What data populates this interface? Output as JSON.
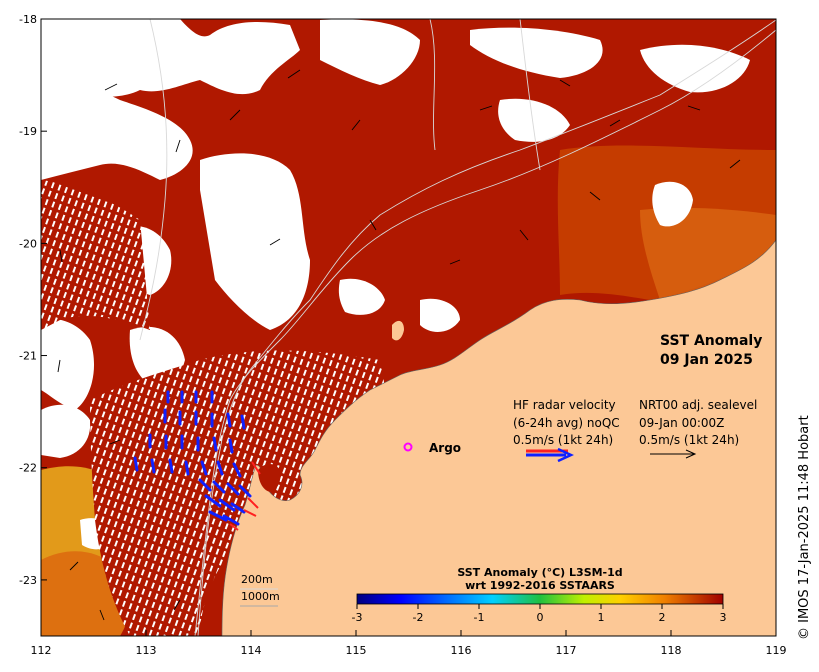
{
  "map": {
    "title_line1": "SST Anomaly",
    "title_line2": "09 Jan 2025",
    "x_ticks": [
      "112",
      "113",
      "114",
      "115",
      "116",
      "117",
      "118",
      "119"
    ],
    "y_ticks": [
      "-18",
      "-19",
      "-20",
      "-21",
      "-22",
      "-23"
    ],
    "lon_range": [
      112,
      119
    ],
    "lat_range": [
      -23.5,
      -18
    ],
    "credit": "© IMOS 17-Jan-2025 11:48 Hobart"
  },
  "legend": {
    "hf_line1": "HF radar velocity",
    "hf_line2": "(6-24h avg) noQC",
    "hf_line3": "0.5m/s (1kt 24h)",
    "nrt_line1": "NRT00 adj. sealevel",
    "nrt_line2": "09-Jan 00:00Z",
    "nrt_line3": "0.5m/s (1kt 24h)",
    "argo_marker": "o",
    "argo_label": "Argo"
  },
  "depth": {
    "contour1": "200m",
    "contour2": "1000m"
  },
  "colorbar": {
    "title_line1": "SST Anomaly (°C) L3SM-1d",
    "title_line2": "wrt 1992-2016 SSTAARS",
    "ticks": [
      "-3",
      "-2",
      "-1",
      "0",
      "1",
      "2",
      "3"
    ],
    "range": [
      -3,
      3
    ]
  },
  "colors": {
    "sst_high": "#b01800",
    "sst_mid": "#c83a00",
    "sst_orange": "#dd6c10",
    "sst_yellow": "#e7a020",
    "land": "#fcc896",
    "argo": "#ff00ff",
    "hf_arrow": "#1020ff",
    "hf_arrow_red": "#ff2020"
  }
}
